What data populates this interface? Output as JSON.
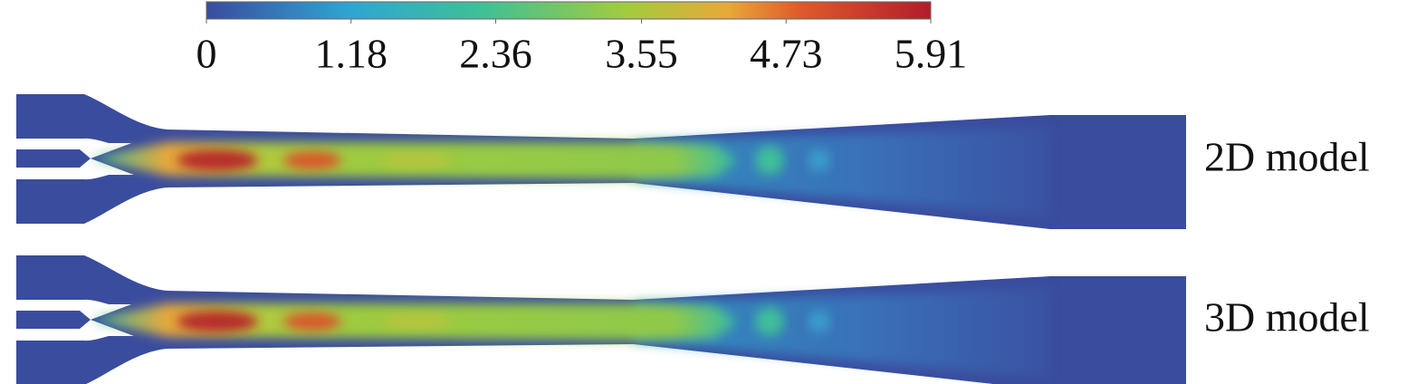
{
  "colorbar": {
    "range": [
      0,
      5.91
    ],
    "ticks": [
      0,
      1.18,
      2.36,
      3.55,
      4.73,
      5.91
    ]
  },
  "panels": [
    {
      "label": "2D model"
    },
    {
      "label": "3D model"
    }
  ]
}
